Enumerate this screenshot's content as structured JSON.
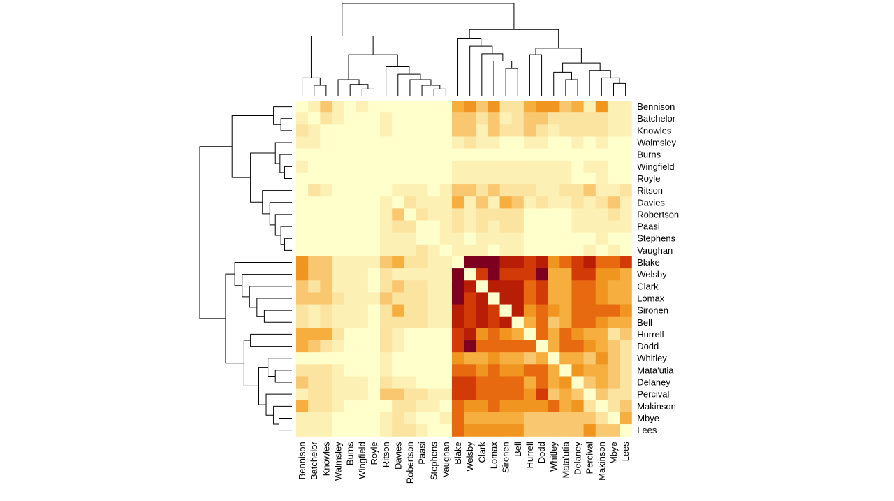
{
  "chart_data": {
    "type": "heatmap",
    "title": "",
    "xlabel": "",
    "ylabel": "",
    "row_labels": [
      "Bennison",
      "Batchelor",
      "Knowles",
      "Walmsley",
      "Burns",
      "Wingfield",
      "Royle",
      "Ritson",
      "Davies",
      "Robertson",
      "Paasi",
      "Stephens",
      "Vaughan",
      "Blake",
      "Welsby",
      "Clark",
      "Lomax",
      "Sironen",
      "Bell",
      "Hurrell",
      "Dodd",
      "Whitley",
      "Mata'utia",
      "Delaney",
      "Percival",
      "Makinson",
      "Mbye",
      "Lees"
    ],
    "col_labels": [
      "Bennison",
      "Batchelor",
      "Knowles",
      "Walmsley",
      "Burns",
      "Wingfield",
      "Royle",
      "Ritson",
      "Davies",
      "Robertson",
      "Paasi",
      "Stephens",
      "Vaughan",
      "Blake",
      "Welsby",
      "Clark",
      "Lomax",
      "Sironen",
      "Bell",
      "Hurrell",
      "Dodd",
      "Whitley",
      "Mata'utia",
      "Delaney",
      "Percival",
      "Makinson",
      "Mbye",
      "Lees"
    ],
    "color_scale": "heat.colors (dark red = high, pale yellow = low)",
    "colors": [
      "#FFFFCC",
      "#FDF0B4",
      "#FBE3A0",
      "#F9C770",
      "#F6AE3E",
      "#F0951F",
      "#E86A10",
      "#D23B08",
      "#B81E06",
      "#7E0021"
    ],
    "diagonal_color": "#FFFFCC",
    "values": [
      [
        0,
        1,
        3,
        1,
        0,
        1,
        0,
        0,
        0,
        0,
        0,
        0,
        0,
        4,
        5,
        3,
        5,
        2,
        2,
        4,
        5,
        5,
        3,
        4,
        1,
        5,
        1,
        1
      ],
      [
        1,
        0,
        2,
        1,
        0,
        0,
        0,
        1,
        0,
        0,
        0,
        0,
        0,
        3,
        3,
        2,
        3,
        1,
        2,
        3,
        3,
        2,
        2,
        2,
        2,
        2,
        1,
        1
      ],
      [
        2,
        1,
        0,
        0,
        0,
        0,
        0,
        1,
        0,
        0,
        0,
        0,
        0,
        3,
        3,
        1,
        3,
        2,
        2,
        3,
        2,
        1,
        2,
        2,
        2,
        2,
        1,
        1
      ],
      [
        1,
        1,
        0,
        0,
        0,
        0,
        0,
        0,
        0,
        0,
        0,
        0,
        0,
        1,
        2,
        1,
        1,
        0,
        0,
        1,
        1,
        0,
        0,
        1,
        0,
        1,
        0,
        0
      ],
      [
        0,
        0,
        0,
        0,
        0,
        0,
        0,
        0,
        0,
        0,
        0,
        0,
        0,
        0,
        0,
        0,
        0,
        0,
        0,
        0,
        0,
        0,
        0,
        0,
        0,
        0,
        0,
        0
      ],
      [
        1,
        0,
        0,
        0,
        0,
        0,
        0,
        0,
        0,
        0,
        0,
        0,
        0,
        1,
        1,
        1,
        1,
        1,
        1,
        1,
        1,
        1,
        1,
        0,
        1,
        1,
        0,
        0
      ],
      [
        0,
        0,
        0,
        0,
        0,
        0,
        0,
        0,
        0,
        0,
        0,
        0,
        0,
        1,
        1,
        1,
        1,
        1,
        1,
        1,
        1,
        1,
        1,
        0,
        0,
        1,
        0,
        0
      ],
      [
        0,
        2,
        1,
        0,
        0,
        0,
        0,
        0,
        1,
        1,
        1,
        0,
        1,
        3,
        3,
        2,
        3,
        2,
        2,
        2,
        1,
        1,
        2,
        2,
        3,
        1,
        1,
        2
      ],
      [
        0,
        0,
        0,
        0,
        0,
        0,
        0,
        1,
        0,
        2,
        1,
        1,
        1,
        4,
        1,
        3,
        1,
        4,
        3,
        1,
        2,
        1,
        1,
        2,
        1,
        2,
        3,
        1
      ],
      [
        0,
        0,
        0,
        0,
        0,
        0,
        0,
        1,
        3,
        0,
        2,
        1,
        1,
        2,
        1,
        2,
        2,
        2,
        2,
        0,
        0,
        0,
        0,
        1,
        1,
        1,
        2,
        1
      ],
      [
        0,
        0,
        0,
        0,
        0,
        0,
        0,
        1,
        2,
        2,
        0,
        0,
        1,
        2,
        1,
        2,
        1,
        2,
        2,
        0,
        0,
        0,
        0,
        1,
        1,
        1,
        1,
        1
      ],
      [
        0,
        0,
        0,
        0,
        0,
        0,
        0,
        1,
        1,
        1,
        0,
        0,
        1,
        1,
        0,
        1,
        1,
        1,
        1,
        0,
        0,
        0,
        0,
        0,
        0,
        1,
        0,
        0
      ],
      [
        0,
        0,
        0,
        0,
        0,
        0,
        0,
        1,
        1,
        1,
        2,
        1,
        0,
        1,
        1,
        1,
        0,
        1,
        1,
        0,
        0,
        0,
        0,
        0,
        1,
        0,
        1,
        0
      ],
      [
        5,
        3,
        3,
        1,
        1,
        1,
        1,
        3,
        4,
        2,
        2,
        1,
        1,
        0,
        9,
        9,
        9,
        8,
        8,
        7,
        8,
        5,
        6,
        7,
        8,
        6,
        6,
        7
      ],
      [
        5,
        3,
        3,
        1,
        1,
        1,
        0,
        2,
        1,
        1,
        1,
        1,
        1,
        9,
        0,
        7,
        9,
        7,
        7,
        7,
        9,
        4,
        4,
        7,
        7,
        5,
        5,
        4
      ],
      [
        3,
        2,
        3,
        1,
        1,
        1,
        0,
        2,
        3,
        2,
        2,
        1,
        1,
        9,
        8,
        0,
        8,
        8,
        8,
        6,
        7,
        4,
        4,
        6,
        6,
        5,
        4,
        4
      ],
      [
        3,
        3,
        3,
        2,
        1,
        1,
        1,
        3,
        2,
        2,
        2,
        1,
        1,
        9,
        7,
        8,
        0,
        8,
        8,
        6,
        7,
        4,
        4,
        6,
        6,
        5,
        4,
        4
      ],
      [
        2,
        1,
        2,
        1,
        1,
        1,
        0,
        2,
        4,
        2,
        2,
        1,
        1,
        8,
        7,
        8,
        7,
        0,
        8,
        5,
        6,
        5,
        4,
        6,
        6,
        6,
        6,
        5
      ],
      [
        2,
        1,
        2,
        1,
        1,
        1,
        0,
        2,
        2,
        2,
        2,
        1,
        1,
        8,
        7,
        8,
        7,
        8,
        0,
        4,
        6,
        3,
        4,
        6,
        6,
        5,
        4,
        4
      ],
      [
        4,
        4,
        4,
        2,
        0,
        0,
        0,
        2,
        1,
        0,
        0,
        0,
        0,
        7,
        8,
        5,
        6,
        5,
        4,
        0,
        6,
        4,
        6,
        5,
        4,
        4,
        2,
        3
      ],
      [
        4,
        3,
        2,
        1,
        0,
        0,
        0,
        2,
        1,
        0,
        0,
        0,
        0,
        7,
        9,
        6,
        6,
        6,
        6,
        6,
        0,
        4,
        6,
        6,
        5,
        4,
        3,
        2
      ],
      [
        0,
        0,
        0,
        0,
        0,
        0,
        0,
        1,
        0,
        0,
        0,
        0,
        0,
        5,
        4,
        4,
        5,
        4,
        4,
        3,
        4,
        0,
        4,
        4,
        3,
        5,
        3,
        2
      ],
      [
        2,
        2,
        2,
        1,
        0,
        0,
        0,
        1,
        0,
        0,
        0,
        0,
        0,
        6,
        6,
        5,
        6,
        5,
        5,
        6,
        6,
        4,
        0,
        5,
        4,
        4,
        3,
        2
      ],
      [
        3,
        2,
        2,
        1,
        1,
        1,
        0,
        2,
        1,
        1,
        0,
        0,
        0,
        7,
        7,
        6,
        6,
        6,
        6,
        4,
        6,
        4,
        5,
        0,
        3,
        4,
        3,
        2
      ],
      [
        1,
        2,
        2,
        1,
        1,
        1,
        0,
        3,
        3,
        2,
        2,
        1,
        1,
        7,
        7,
        6,
        6,
        6,
        6,
        5,
        7,
        3,
        4,
        3,
        0,
        3,
        2,
        2
      ],
      [
        4,
        2,
        2,
        1,
        0,
        0,
        0,
        0,
        2,
        2,
        1,
        1,
        0,
        6,
        5,
        5,
        6,
        5,
        5,
        5,
        5,
        6,
        4,
        5,
        2,
        0,
        2,
        3
      ],
      [
        1,
        1,
        1,
        0,
        0,
        0,
        0,
        1,
        2,
        1,
        0,
        0,
        1,
        6,
        4,
        4,
        4,
        4,
        4,
        3,
        3,
        3,
        3,
        3,
        3,
        2,
        0,
        4
      ],
      [
        1,
        1,
        1,
        0,
        0,
        0,
        0,
        1,
        2,
        2,
        1,
        0,
        0,
        6,
        5,
        5,
        5,
        5,
        5,
        3,
        3,
        3,
        3,
        3,
        5,
        3,
        3,
        0
      ]
    ],
    "dendrogram": "hierarchical clustering: rows and columns split into group [Bennison..Vaughan] and group [Blake..Lees]",
    "legend": "none",
    "grid": false
  }
}
